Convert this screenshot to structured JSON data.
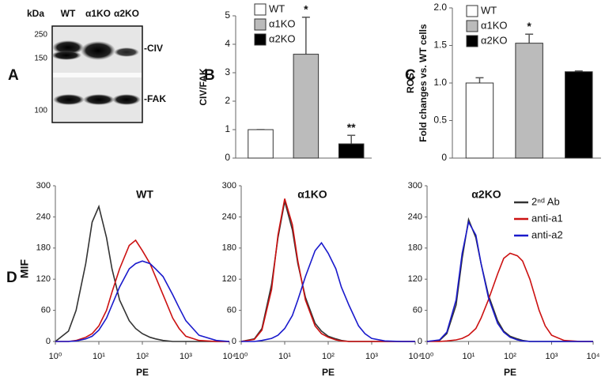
{
  "blot": {
    "panel": "A",
    "unit": "kDa",
    "lanes": [
      "WT",
      "α1KO",
      "α2KO"
    ],
    "top_markers": [
      "250",
      "150"
    ],
    "bottom_markers": [
      "100"
    ],
    "bands": [
      "-CIV",
      "-FAK"
    ]
  },
  "chart_data": [
    {
      "type": "bar",
      "panel": "B",
      "ylabel": "CIV/FAK",
      "categories": [
        "WT",
        "α1KO",
        "α2KO"
      ],
      "values": [
        1,
        3.65,
        0.5
      ],
      "errors": [
        0,
        1.3,
        0.3
      ],
      "colors": [
        "#ffffff",
        "#bbbbbb",
        "#000000"
      ],
      "annotations": [
        null,
        "*",
        "**"
      ],
      "ylim": [
        0,
        5
      ],
      "yticks": [
        0,
        1,
        2,
        3,
        4,
        5
      ],
      "legend": true
    },
    {
      "type": "bar",
      "panel": "C",
      "ylabel": [
        "ROS",
        "Fold  changes vs.  WT cells"
      ],
      "categories": [
        "WT",
        "α1KO",
        "α2KO"
      ],
      "values": [
        1.0,
        1.53,
        1.15
      ],
      "errors": [
        0.07,
        0.12,
        0.01
      ],
      "colors": [
        "#ffffff",
        "#bbbbbb",
        "#000000"
      ],
      "annotations": [
        null,
        "*",
        null
      ],
      "ylim": [
        0,
        2
      ],
      "yticks": [
        0,
        {
          "value": 0.5,
          "label": "0.5"
        },
        {
          "value": 1,
          "label": "1.0"
        },
        {
          "value": 1.5,
          "label": "1.5"
        },
        {
          "value": 2,
          "label": "2.0"
        }
      ],
      "legend": true
    },
    {
      "type": "line",
      "panel": "D",
      "title": "WT",
      "xlabel": "PE",
      "ylabel": "MIF",
      "log_x": true,
      "x": [
        1,
        2,
        3,
        5,
        7,
        10,
        15,
        20,
        30,
        50,
        70,
        100,
        150,
        200,
        300,
        500,
        700,
        1000,
        2000,
        5000,
        10000
      ],
      "xlim": [
        1,
        10000
      ],
      "xticks": [
        {
          "value": 1,
          "label": "10⁰"
        },
        {
          "value": 10,
          "label": "10¹"
        },
        {
          "value": 100,
          "label": "10²"
        },
        {
          "value": 1000,
          "label": "10³"
        },
        {
          "value": 10000,
          "label": "10⁴"
        }
      ],
      "ylim": [
        0,
        300
      ],
      "yticks": [
        0,
        60,
        120,
        180,
        240,
        300
      ],
      "legend": false,
      "series": [
        {
          "name": "2ⁿᵈ Ab",
          "color": "#333333",
          "values": [
            0,
            20,
            60,
            150,
            230,
            260,
            200,
            140,
            80,
            40,
            25,
            15,
            8,
            5,
            2,
            0,
            0,
            0,
            0,
            0,
            0
          ]
        },
        {
          "name": "anti-a1",
          "color": "#cc1111",
          "values": [
            0,
            0,
            2,
            8,
            15,
            30,
            60,
            95,
            140,
            185,
            195,
            175,
            150,
            125,
            90,
            45,
            25,
            10,
            2,
            0,
            0
          ]
        },
        {
          "name": "anti-a2",
          "color": "#1a1acc",
          "values": [
            0,
            0,
            1,
            5,
            10,
            22,
            45,
            70,
            105,
            140,
            150,
            155,
            150,
            140,
            125,
            90,
            65,
            40,
            12,
            2,
            0
          ]
        }
      ]
    },
    {
      "type": "line",
      "title": "α1KO",
      "xlabel": "PE",
      "log_x": true,
      "x": [
        1,
        2,
        3,
        5,
        7,
        10,
        15,
        20,
        30,
        50,
        70,
        100,
        150,
        200,
        300,
        500,
        700,
        1000,
        2000,
        5000,
        10000
      ],
      "xlim": [
        1,
        10000
      ],
      "xticks": [
        {
          "value": 1,
          "label": "10⁰"
        },
        {
          "value": 10,
          "label": "10¹"
        },
        {
          "value": 100,
          "label": "10²"
        },
        {
          "value": 1000,
          "label": "10³"
        },
        {
          "value": 10000,
          "label": "10⁴"
        }
      ],
      "ylim": [
        0,
        300
      ],
      "yticks": [
        0,
        60,
        120,
        180,
        240,
        300
      ],
      "legend": false,
      "series": [
        {
          "name": "2ⁿᵈ Ab",
          "color": "#333333",
          "values": [
            0,
            5,
            25,
            110,
            200,
            270,
            215,
            150,
            85,
            35,
            20,
            10,
            5,
            2,
            0,
            0,
            0,
            0,
            0,
            0,
            0
          ]
        },
        {
          "name": "anti-a1",
          "color": "#cc1111",
          "values": [
            0,
            4,
            22,
            100,
            205,
            275,
            225,
            155,
            80,
            30,
            15,
            8,
            3,
            1,
            0,
            0,
            0,
            0,
            0,
            0,
            0
          ]
        },
        {
          "name": "anti-a2",
          "color": "#1a1acc",
          "values": [
            0,
            0,
            2,
            6,
            12,
            25,
            50,
            80,
            125,
            175,
            190,
            170,
            140,
            105,
            70,
            30,
            15,
            6,
            1,
            0,
            0
          ]
        }
      ]
    },
    {
      "type": "line",
      "title": "α2KO",
      "xlabel": "PE",
      "log_x": true,
      "x": [
        1,
        2,
        3,
        5,
        7,
        10,
        15,
        20,
        30,
        50,
        70,
        100,
        150,
        200,
        300,
        500,
        700,
        1000,
        2000,
        5000,
        10000
      ],
      "xlim": [
        1,
        10000
      ],
      "xticks": [
        {
          "value": 1,
          "label": "10⁰"
        },
        {
          "value": 10,
          "label": "10¹"
        },
        {
          "value": 100,
          "label": "10²"
        },
        {
          "value": 1000,
          "label": "10³"
        },
        {
          "value": 10000,
          "label": "10⁴"
        }
      ],
      "ylim": [
        0,
        300
      ],
      "yticks": [
        0,
        60,
        120,
        180,
        240,
        300
      ],
      "legend": true,
      "series": [
        {
          "name": "2ⁿᵈ Ab",
          "color": "#333333",
          "values": [
            0,
            2,
            15,
            70,
            160,
            235,
            200,
            150,
            90,
            40,
            20,
            10,
            5,
            2,
            0,
            0,
            0,
            0,
            0,
            0,
            0
          ]
        },
        {
          "name": "anti-a1",
          "color": "#cc1111",
          "values": [
            0,
            0,
            1,
            3,
            6,
            12,
            25,
            45,
            80,
            130,
            160,
            170,
            165,
            155,
            120,
            60,
            30,
            12,
            2,
            0,
            0
          ]
        },
        {
          "name": "anti-a2",
          "color": "#1a1acc",
          "values": [
            0,
            3,
            18,
            80,
            170,
            230,
            205,
            150,
            85,
            35,
            18,
            8,
            3,
            1,
            0,
            0,
            0,
            0,
            0,
            0,
            0
          ]
        }
      ]
    }
  ]
}
